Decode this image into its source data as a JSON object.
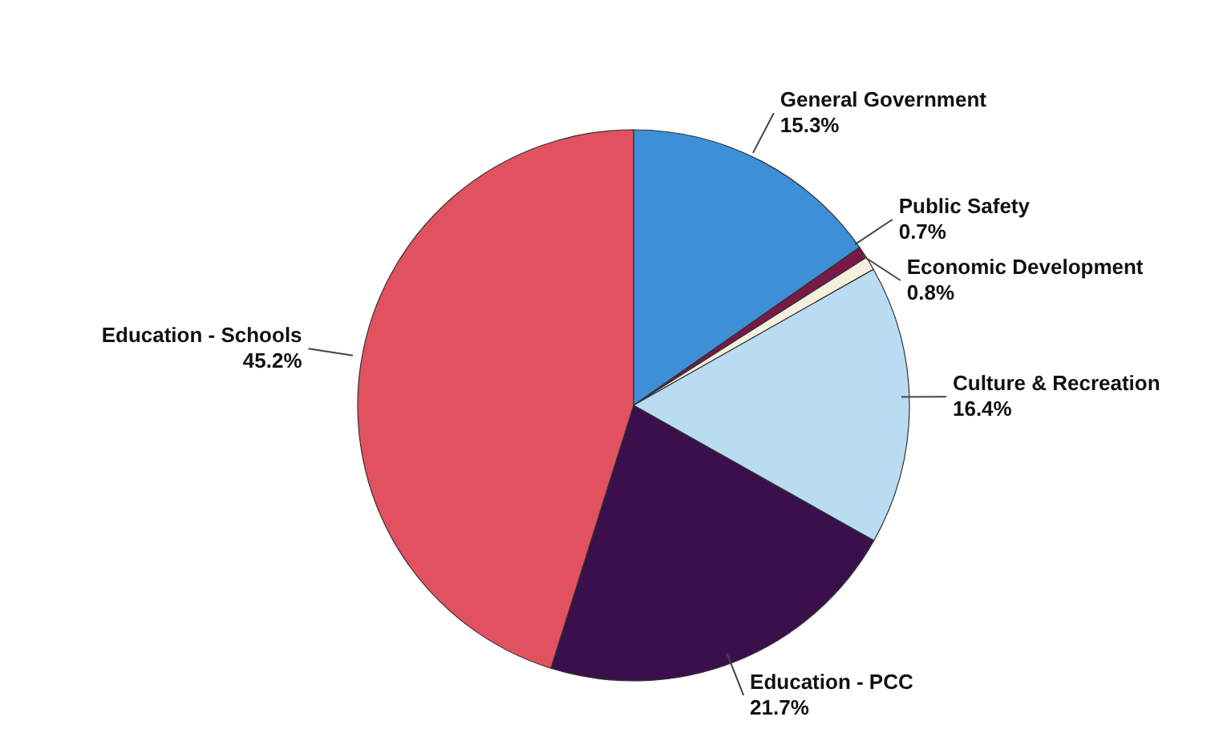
{
  "chart_data": {
    "type": "pie",
    "categories": [
      "General Government",
      "Public Safety",
      "Economic Development",
      "Culture & Recreation",
      "Education - PCC",
      "Education - Schools"
    ],
    "values": [
      15.3,
      0.7,
      0.8,
      16.4,
      21.7,
      45.2
    ],
    "value_labels": [
      "15.3%",
      "0.7%",
      "0.8%",
      "16.4%",
      "21.7%",
      "45.2%"
    ],
    "colors": [
      "#3d8fd6",
      "#7a1848",
      "#f4f0dc",
      "#b9dcf2",
      "#3a0f4c",
      "#e2515f"
    ],
    "legend": false
  }
}
